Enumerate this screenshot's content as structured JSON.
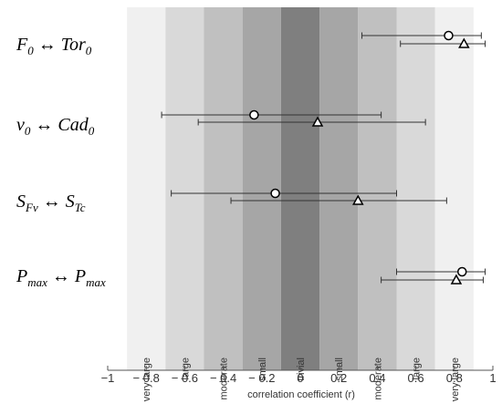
{
  "chart_data": {
    "type": "scatter",
    "xlabel": "correlation coefficient (r)",
    "xlim": [
      -1,
      1
    ],
    "x_ticks": [
      {
        "value": -1,
        "label": "−1"
      },
      {
        "value": -0.8,
        "label": "− 0.8"
      },
      {
        "value": -0.6,
        "label": "− 0.6"
      },
      {
        "value": -0.4,
        "label": "− 0.4"
      },
      {
        "value": -0.2,
        "label": "− 0.2"
      },
      {
        "value": 0,
        "label": "0"
      },
      {
        "value": 0.2,
        "label": "0.2"
      },
      {
        "value": 0.4,
        "label": "0.4"
      },
      {
        "value": 0.6,
        "label": "0.6"
      },
      {
        "value": 0.8,
        "label": "0.8"
      },
      {
        "value": 1,
        "label": "1"
      }
    ],
    "zones": [
      {
        "from": -0.9,
        "to": -0.7,
        "label": "very large",
        "color": "#f0f0f0"
      },
      {
        "from": -0.7,
        "to": -0.5,
        "label": "large",
        "color": "#d9d9d9"
      },
      {
        "from": -0.5,
        "to": -0.3,
        "label": "moderate",
        "color": "#c0c0c0"
      },
      {
        "from": -0.3,
        "to": -0.1,
        "label": "small",
        "color": "#a6a6a6"
      },
      {
        "from": -0.1,
        "to": 0.1,
        "label": "trivial",
        "color": "#7f7f7f"
      },
      {
        "from": 0.1,
        "to": 0.3,
        "label": "small",
        "color": "#a6a6a6"
      },
      {
        "from": 0.3,
        "to": 0.5,
        "label": "moderate",
        "color": "#c0c0c0"
      },
      {
        "from": 0.5,
        "to": 0.7,
        "label": "large",
        "color": "#d9d9d9"
      },
      {
        "from": 0.7,
        "to": 0.9,
        "label": "very large",
        "color": "#f0f0f0"
      }
    ],
    "rows": [
      {
        "left": {
          "main": "F",
          "sub": "0"
        },
        "arrow": "↔",
        "right": {
          "main": "Tor",
          "sub": "0"
        },
        "points": [
          {
            "marker": "circle",
            "r": 0.77,
            "ci": [
              0.32,
              0.94
            ]
          },
          {
            "marker": "triangle",
            "r": 0.85,
            "ci": [
              0.52,
              0.96
            ]
          }
        ]
      },
      {
        "left": {
          "main": "v",
          "sub": "0"
        },
        "arrow": "↔",
        "right": {
          "main": "Cad",
          "sub": "0"
        },
        "points": [
          {
            "marker": "circle",
            "r": -0.24,
            "ci": [
              -0.72,
              0.42
            ]
          },
          {
            "marker": "triangle",
            "r": 0.09,
            "ci": [
              -0.53,
              0.65
            ]
          }
        ]
      },
      {
        "left": {
          "main": "S",
          "sub": "Fv"
        },
        "arrow": "↔",
        "right": {
          "main": "S",
          "sub": "Tc"
        },
        "points": [
          {
            "marker": "circle",
            "r": -0.13,
            "ci": [
              -0.67,
              0.5
            ]
          },
          {
            "marker": "triangle",
            "r": 0.3,
            "ci": [
              -0.36,
              0.76
            ]
          }
        ]
      },
      {
        "left": {
          "main": "P",
          "sub": "max"
        },
        "arrow": "↔",
        "right": {
          "main": "P",
          "sub": "max"
        },
        "points": [
          {
            "marker": "circle",
            "r": 0.84,
            "ci": [
              0.5,
              0.96
            ]
          },
          {
            "marker": "triangle",
            "r": 0.81,
            "ci": [
              0.42,
              0.95
            ]
          }
        ]
      }
    ]
  }
}
